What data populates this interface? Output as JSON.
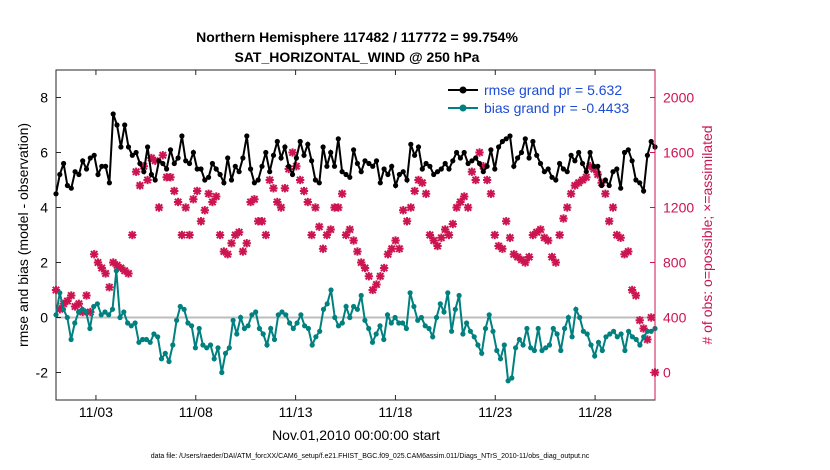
{
  "title_line1": "Northern Hemisphere 117482 / 117772 = 99.754%",
  "title_line2": "SAT_HORIZONTAL_WIND @ 250 hPa",
  "footer": "data file: /Users/raeder/DAI/ATM_forcXX/CAM6_setup/f.e21.FHIST_BGC.f09_025.CAM6assim.011/Diags_NTrS_2010-11/obs_diag_output.nc",
  "colors": {
    "rmse": "#000000",
    "bias": "#00807f",
    "obs": "#cc1450",
    "legend_text": "#1c4bd6",
    "zero_line": "#bdbdbd"
  },
  "chart_data": {
    "type": "line",
    "xlabel": "Nov.01,2010 00:00:00 start",
    "ylabel_left": "rmse and bias (model - observation)",
    "ylabel_right": "# of obs: o=possible; ×=assimilated",
    "x_ticks": [
      3,
      8,
      13,
      18,
      23,
      28
    ],
    "x_tick_labels": [
      "11/03",
      "11/08",
      "11/13",
      "11/18",
      "11/23",
      "11/28"
    ],
    "xlim": [
      1,
      31
    ],
    "ylim_left": [
      -3,
      9
    ],
    "y_ticks_left": [
      -2,
      0,
      2,
      4,
      6,
      8
    ],
    "y_tick_labels_left": [
      "-2",
      "0",
      "2",
      "4",
      "6",
      "8"
    ],
    "ylim_right": [
      -200,
      2200
    ],
    "y_ticks_right": [
      0,
      400,
      800,
      1200,
      1600,
      2000
    ],
    "y_tick_labels_right": [
      "0",
      "400",
      "800",
      "1200",
      "1600",
      "2000"
    ],
    "legend_position": "top-right",
    "grid": false,
    "series": [
      {
        "name": "rmse grand pr = 5.632",
        "axis": "left",
        "marker": "filled-circle",
        "values": [
          4.5,
          5.2,
          5.6,
          4.8,
          4.7,
          5.3,
          5.2,
          5.7,
          5.4,
          5.8,
          5.9,
          5.2,
          5.5,
          5.5,
          4.9,
          7.4,
          7.0,
          6.2,
          7.0,
          6.2,
          5.9,
          6.0,
          5.6,
          5.3,
          6.2,
          5.2,
          5.0,
          5.7,
          5.6,
          5.4,
          6.1,
          5.6,
          5.8,
          6.6,
          5.7,
          5.6,
          6.0,
          5.4,
          5.4,
          5.0,
          5.1,
          5.6,
          5.4,
          5.2,
          4.9,
          5.8,
          5.0,
          5.5,
          5.3,
          5.8,
          6.6,
          5.4,
          4.9,
          5.0,
          5.5,
          6.0,
          5.3,
          5.9,
          6.4,
          5.8,
          6.2,
          5.5,
          5.2,
          5.8,
          6.4,
          5.9,
          6.3,
          5.7,
          5.0,
          4.9,
          6.2,
          5.5,
          6.0,
          5.5,
          6.5,
          5.3,
          5.2,
          5.1,
          6.1,
          5.6,
          5.3,
          5.7,
          5.6,
          5.5,
          5.7,
          4.9,
          5.4,
          5.2,
          5.5,
          4.8,
          5.2,
          5.3,
          5.0,
          6.3,
          5.9,
          6.2,
          5.4,
          5.6,
          5.5,
          5.2,
          5.3,
          5.4,
          5.6,
          5.4,
          5.7,
          6.0,
          5.8,
          6.0,
          5.6,
          5.7,
          5.8,
          5.6,
          5.3,
          5.5,
          6.1,
          5.4,
          6.2,
          6.4,
          6.5,
          6.6,
          5.5,
          5.8,
          6.0,
          6.5,
          5.8,
          6.4,
          5.9,
          5.6,
          5.3,
          5.4,
          5.1,
          5.0,
          5.6,
          5.4,
          5.3,
          5.9,
          5.7,
          6.0,
          5.6,
          5.3,
          6.0,
          5.5,
          5.5,
          4.8,
          5.0,
          4.8,
          5.3,
          5.4,
          4.7,
          6.0,
          6.1,
          5.7,
          5.0,
          4.9,
          4.6,
          5.9,
          6.4,
          6.2
        ]
      },
      {
        "name": "bias grand pr = -0.4433",
        "axis": "left",
        "marker": "filled-circle",
        "values": [
          0.1,
          0.9,
          0.3,
          0.0,
          -0.8,
          -0.2,
          0.2,
          0.3,
          0.2,
          -0.4,
          0.4,
          0.5,
          0.1,
          0.2,
          0.1,
          0.3,
          1.7,
          0.0,
          0.2,
          -0.2,
          -0.3,
          -0.2,
          -0.9,
          -0.8,
          -0.8,
          -0.9,
          -0.6,
          -0.7,
          -1.5,
          -1.3,
          -1.6,
          -1.0,
          -0.1,
          0.4,
          0.3,
          -0.2,
          -0.3,
          -1.1,
          -0.4,
          -1.0,
          -1.1,
          -1.0,
          -1.5,
          -1.1,
          -2.0,
          -1.3,
          -1.1,
          -0.1,
          -0.6,
          0.0,
          -0.4,
          -0.3,
          0.1,
          0.2,
          -0.4,
          -0.6,
          -1.0,
          -0.4,
          -0.8,
          0.1,
          0.2,
          0.1,
          -0.2,
          -0.4,
          -0.2,
          0.1,
          -0.3,
          -0.4,
          -1.0,
          -0.7,
          -0.5,
          0.3,
          0.5,
          1.0,
          0.0,
          -0.3,
          -0.2,
          0.4,
          0.0,
          0.4,
          0.3,
          0.8,
          -0.1,
          -0.4,
          -0.9,
          -0.6,
          -0.3,
          -0.8,
          0.1,
          -0.2,
          0.0,
          -0.2,
          -0.2,
          -0.4,
          0.9,
          0.4,
          -0.1,
          0.0,
          -0.3,
          -0.4,
          -0.7,
          0.0,
          0.5,
          0.2,
          0.9,
          -0.5,
          0.3,
          0.8,
          -0.6,
          -0.2,
          -0.5,
          -0.7,
          -1.0,
          -1.3,
          -0.4,
          0.1,
          -0.5,
          -1.2,
          -1.5,
          -1.0,
          -2.3,
          -2.2,
          -1.1,
          -0.8,
          -1.0,
          -0.4,
          -1.1,
          -1.2,
          -0.4,
          -1.2,
          -1.1,
          -1.0,
          -0.4,
          -0.6,
          -1.2,
          -0.4,
          0.0,
          -0.7,
          0.3,
          0.0,
          -0.5,
          -0.6,
          -1.0,
          -1.4,
          -0.9,
          -1.2,
          -0.7,
          -0.6,
          -0.5,
          -0.7,
          -0.6,
          -1.2,
          -0.5,
          -0.7,
          -0.8,
          -1.0,
          -0.7,
          -0.5,
          -0.5,
          -0.4
        ]
      },
      {
        "name": "# of obs possible (o) / assimilated (×)",
        "axis": "right",
        "marker": "x-star",
        "values": [
          600,
          460,
          500,
          520,
          560,
          480,
          500,
          440,
          560,
          440,
          860,
          800,
          760,
          720,
          620,
          800,
          780,
          760,
          740,
          720,
          1000,
          1460,
          1360,
          1500,
          1400,
          1560,
          1540,
          1200,
          1580,
          1420,
          1420,
          1320,
          1240,
          1000,
          1200,
          1000,
          1260,
          1320,
          1100,
          1180,
          1300,
          1240,
          1280,
          1000,
          880,
          860,
          940,
          1000,
          1020,
          880,
          940,
          1240,
          1260,
          1100,
          1100,
          1000,
          1400,
          1340,
          1240,
          1200,
          1340,
          1480,
          1600,
          1500,
          1400,
          1320,
          1240,
          1000,
          1200,
          1060,
          900,
          1000,
          1040,
          1200,
          1200,
          1300,
          1000,
          1040,
          960,
          880,
          800,
          760,
          700,
          600,
          640,
          700,
          760,
          860,
          900,
          960,
          900,
          1180,
          1100,
          1200,
          1320,
          1400,
          1380,
          1300,
          1000,
          960,
          920,
          980,
          1040,
          1000,
          1080,
          1200,
          1240,
          1280,
          1200,
          1460,
          1400,
          1600,
          1500,
          1400,
          1300,
          1000,
          920,
          900,
          1100,
          980,
          860,
          840,
          820,
          800,
          840,
          1000,
          1020,
          1040,
          980,
          960,
          840,
          800,
          1000,
          1120,
          1200,
          1300,
          1360,
          1380,
          1400,
          1420,
          1500,
          1480,
          1440,
          1380,
          1300,
          1100,
          1200,
          1000,
          980,
          860,
          880,
          600,
          560,
          380,
          320,
          240,
          400,
          0
        ]
      }
    ]
  }
}
